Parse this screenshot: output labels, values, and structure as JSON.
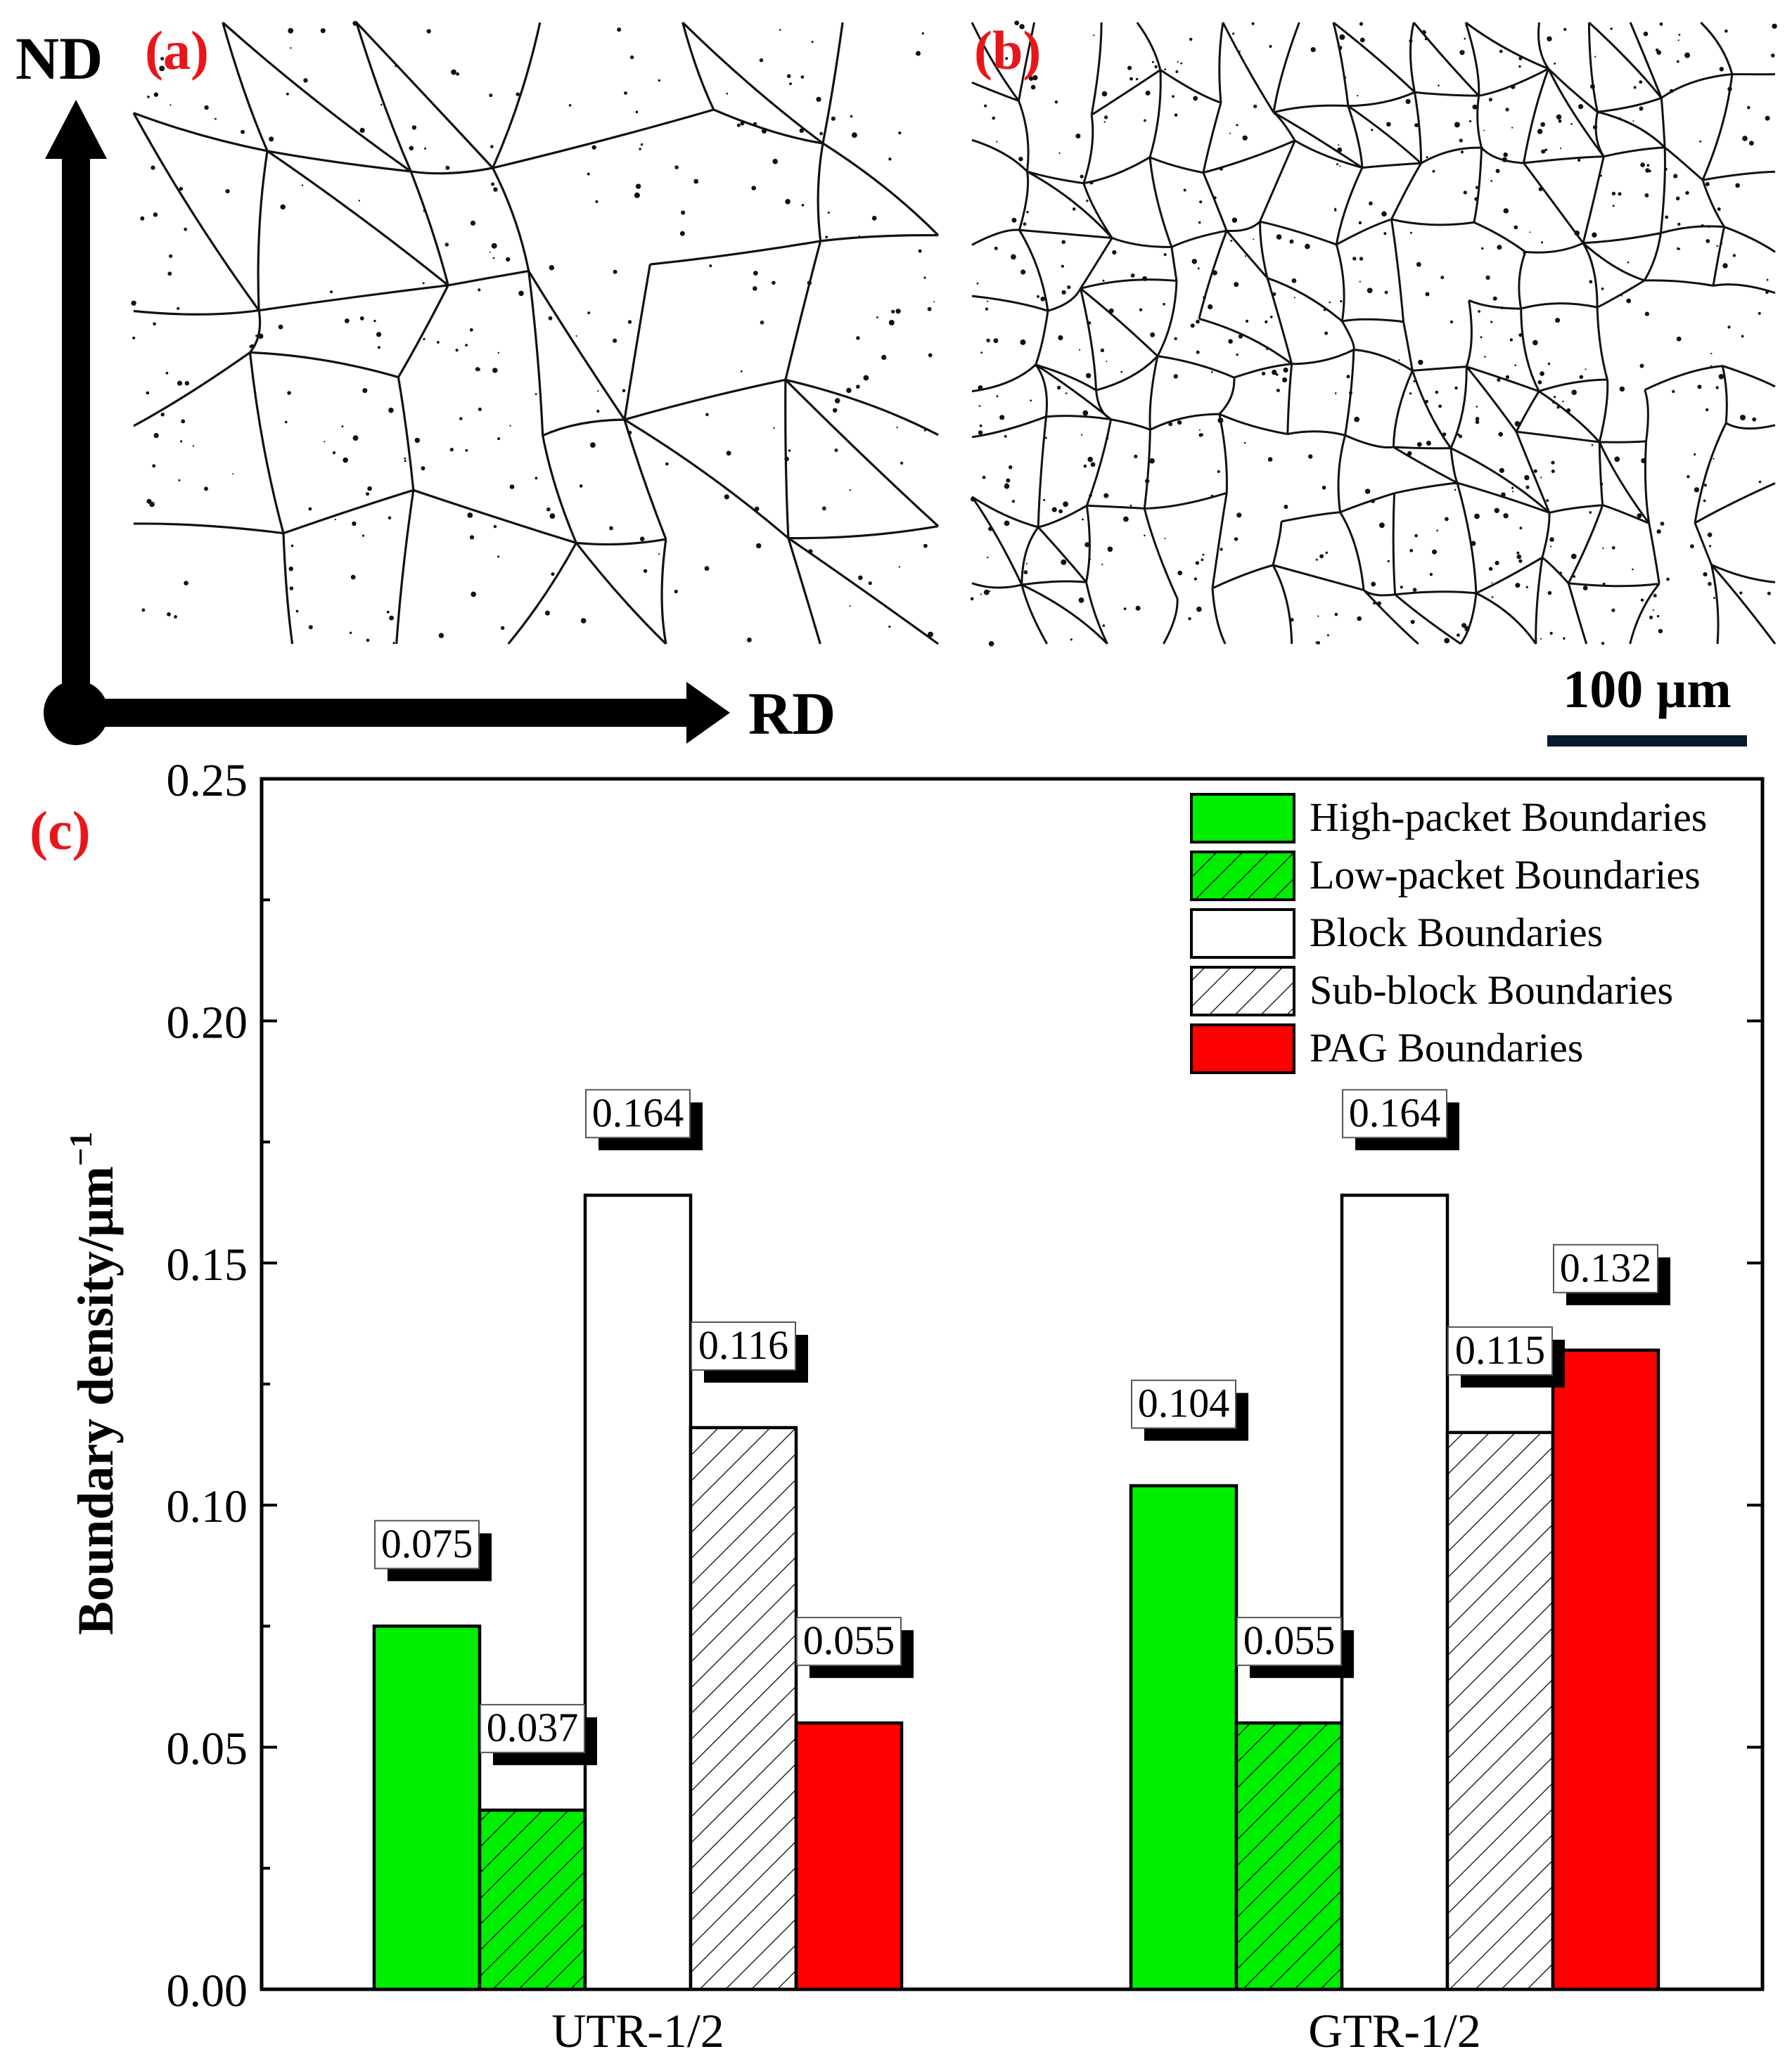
{
  "panels": {
    "a_label": "(a)",
    "b_label": "(b)",
    "c_label": "(c)"
  },
  "axes_indicator": {
    "nd_label": "ND",
    "rd_label": "RD"
  },
  "scale_bar": {
    "label": "100 μm"
  },
  "colors": {
    "panel_label": "#e8161b",
    "green": "#00ee00",
    "red": "#ff0000",
    "white": "#ffffff",
    "black": "#000000"
  },
  "chart_data": {
    "type": "bar",
    "ylabel": "Boundary density/μm",
    "ylabel_sup": "−1",
    "ylim": [
      0,
      0.25
    ],
    "yticks": [
      "0.00",
      "0.05",
      "0.10",
      "0.15",
      "0.20",
      "0.25"
    ],
    "categories": [
      "UTR-1/2",
      "GTR-1/2"
    ],
    "legend_position": "top-right",
    "series": [
      {
        "name": "High-packet Boundaries",
        "fill": "green",
        "hatch": false,
        "values": [
          0.075,
          0.104
        ],
        "labels": [
          "0.075",
          "0.104"
        ]
      },
      {
        "name": "Low-packet Boundaries",
        "fill": "green",
        "hatch": true,
        "values": [
          0.037,
          0.055
        ],
        "labels": [
          "0.037",
          "0.055"
        ]
      },
      {
        "name": "Block Boundaries",
        "fill": "white",
        "hatch": false,
        "values": [
          0.164,
          0.164
        ],
        "labels": [
          "0.164",
          "0.164"
        ]
      },
      {
        "name": "Sub-block Boundaries",
        "fill": "white",
        "hatch": true,
        "values": [
          0.116,
          0.115
        ],
        "labels": [
          "0.116",
          "0.115"
        ]
      },
      {
        "name": "PAG Boundaries",
        "fill": "red",
        "hatch": false,
        "values": [
          0.055,
          0.132
        ],
        "labels": [
          "0.055",
          "0.132"
        ]
      }
    ]
  }
}
